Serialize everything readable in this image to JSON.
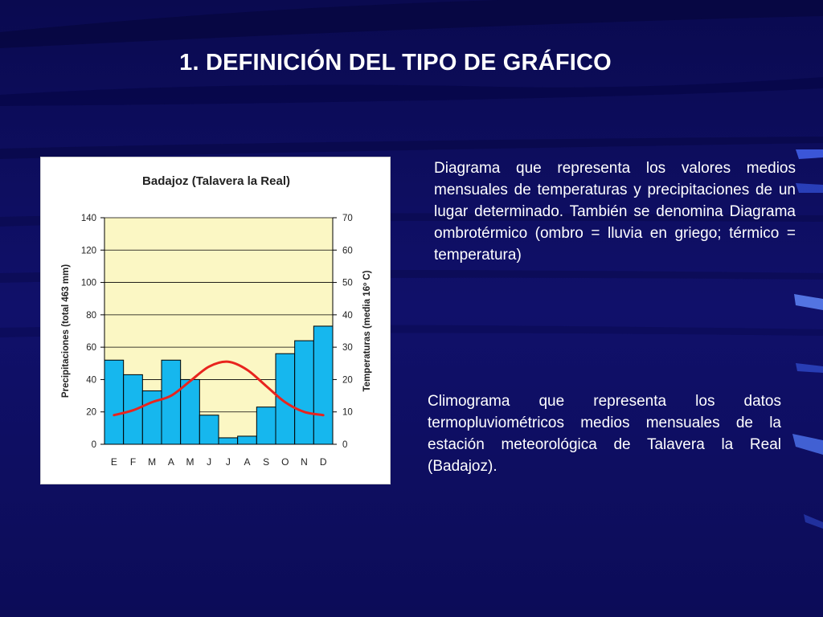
{
  "slide": {
    "title": "1. DEFINICIÓN DEL TIPO DE GRÁFICO",
    "description_1": "Diagrama que representa los valores medios mensuales de temperaturas y precipitaciones de un lugar determinado. También se denomina Diagrama ombrotérmico (ombro = lluvia en griego; térmico = temperatura)",
    "description_2": "Climograma que representa los datos termopluviométricos medios mensuales de la estación meteorológica de Talavera la Real (Badajoz)."
  },
  "colors": {
    "background": "#0d0d5c",
    "plot_area": "#fbf7c4",
    "bars": "#16b7ee",
    "temperature_line": "#e8241e"
  },
  "chart_data": {
    "type": "bar",
    "title": "Badajoz (Talavera la Real)",
    "categories": [
      "E",
      "F",
      "M",
      "A",
      "M",
      "J",
      "J",
      "A",
      "S",
      "O",
      "N",
      "D"
    ],
    "ylabel": "Precipitaciones (total 463 mm)",
    "y2label": "Temperaturas (media 16º C)",
    "ylim": [
      0,
      140
    ],
    "y2lim": [
      0,
      70
    ],
    "yticks": [
      "0",
      "20",
      "40",
      "60",
      "80",
      "100",
      "120",
      "140"
    ],
    "y2ticks": [
      "0",
      "10",
      "20",
      "30",
      "40",
      "50",
      "60",
      "70"
    ],
    "grid": true,
    "series": [
      {
        "type": "bar",
        "axis": "left",
        "values": [
          52,
          43,
          33,
          52,
          40,
          18,
          4,
          5,
          23,
          56,
          64,
          73
        ]
      },
      {
        "type": "line",
        "axis": "right",
        "values": [
          9,
          10.5,
          13,
          15,
          19.5,
          24,
          25.5,
          23,
          18,
          13,
          10,
          9
        ]
      }
    ]
  }
}
